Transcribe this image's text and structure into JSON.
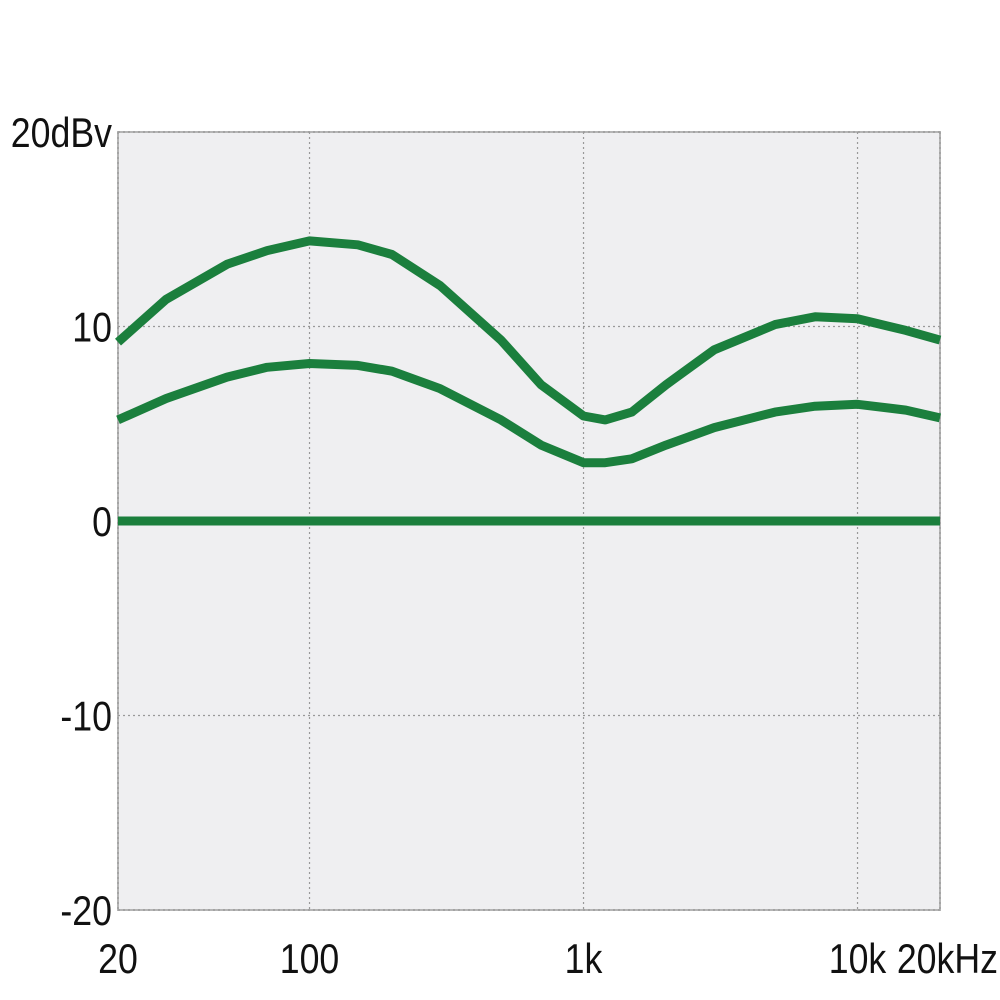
{
  "chart_data": {
    "type": "line",
    "x": [
      20,
      30,
      50,
      70,
      100,
      150,
      200,
      300,
      500,
      700,
      1000,
      1200,
      1500,
      2000,
      3000,
      5000,
      7000,
      10000,
      15000,
      20000
    ],
    "series": [
      {
        "color": "#1b7f3d",
        "values": [
          9.2,
          11.4,
          13.2,
          13.9,
          14.4,
          14.2,
          13.7,
          12.1,
          9.3,
          7.0,
          5.4,
          5.2,
          5.6,
          7.0,
          8.8,
          10.1,
          10.5,
          10.4,
          9.8,
          9.3
        ]
      },
      {
        "color": "#1b7f3d",
        "values": [
          5.2,
          6.3,
          7.4,
          7.9,
          8.1,
          8.0,
          7.7,
          6.8,
          5.2,
          3.9,
          3.0,
          3.0,
          3.2,
          3.9,
          4.8,
          5.6,
          5.9,
          6.0,
          5.7,
          5.3
        ]
      },
      {
        "color": "#1b7f3d",
        "values": [
          0,
          0,
          0,
          0,
          0,
          0,
          0,
          0,
          0,
          0,
          0,
          0,
          0,
          0,
          0,
          0,
          0,
          0,
          0,
          0
        ]
      }
    ],
    "xscale": "log",
    "xlim": [
      20,
      20000
    ],
    "xticks": [
      20,
      100,
      {
        "value": 1000,
        "label": "1k"
      },
      {
        "value": 10000,
        "label": "10k"
      },
      {
        "value": 20000,
        "label": "20kHz"
      }
    ],
    "ylim": [
      -20,
      20
    ],
    "yticks": [
      {
        "value": 20,
        "label": "20dBv"
      },
      10,
      0,
      -10,
      -20
    ],
    "grid": true
  }
}
